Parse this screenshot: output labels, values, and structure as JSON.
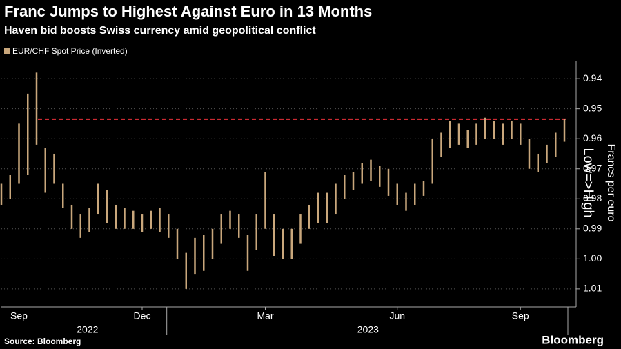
{
  "chart_data": {
    "type": "range-bar",
    "title": "Franc Jumps to Highest Against Euro in 13 Months",
    "subtitle": "Haven bid boosts Swiss currency amid geopolitical conflict",
    "y_axis_label": "Francs per euro",
    "annotation": "Low=>High",
    "source": "Source: Bloomberg",
    "brand": "Bloomberg",
    "x_year_labels": [
      "2022",
      "2023"
    ],
    "categories": [
      null,
      null,
      "Sep",
      null,
      null,
      null,
      null,
      null,
      null,
      null,
      null,
      null,
      null,
      null,
      null,
      null,
      "Dec",
      null,
      null,
      null,
      null,
      null,
      null,
      null,
      null,
      null,
      null,
      null,
      null,
      null,
      "Mar",
      null,
      null,
      null,
      null,
      null,
      null,
      null,
      null,
      null,
      null,
      null,
      null,
      null,
      null,
      "Jun",
      null,
      null,
      null,
      null,
      null,
      null,
      null,
      null,
      null,
      null,
      null,
      null,
      null,
      "Sep",
      null,
      null,
      null,
      null,
      null
    ],
    "series": [
      {
        "name": "EUR/CHF Spot Price (Inverted)",
        "color": "#c9a77c",
        "low": [
          0.975,
          0.972,
          0.955,
          0.945,
          0.938,
          0.963,
          0.965,
          0.975,
          0.982,
          0.985,
          0.983,
          0.975,
          0.977,
          0.982,
          0.983,
          0.984,
          0.985,
          0.984,
          0.983,
          0.985,
          0.99,
          0.998,
          0.993,
          0.992,
          0.99,
          0.985,
          0.984,
          0.985,
          0.992,
          0.985,
          0.971,
          0.985,
          0.99,
          0.99,
          0.985,
          0.982,
          0.978,
          0.978,
          0.975,
          0.972,
          0.971,
          0.968,
          0.967,
          0.969,
          0.97,
          0.975,
          0.978,
          0.975,
          0.974,
          0.96,
          0.958,
          0.954,
          0.955,
          0.957,
          0.955,
          0.953,
          0.954,
          0.955,
          0.954,
          0.955,
          0.96,
          0.965,
          0.962,
          0.958,
          0.9535
        ],
        "high": [
          0.982,
          0.98,
          0.975,
          0.972,
          0.962,
          0.978,
          0.975,
          0.983,
          0.99,
          0.993,
          0.991,
          0.985,
          0.988,
          0.99,
          0.99,
          0.99,
          0.991,
          0.99,
          0.991,
          0.993,
          1.0,
          1.01,
          1.005,
          1.004,
          1.0,
          0.995,
          0.99,
          0.993,
          1.004,
          0.997,
          0.99,
          0.999,
          1.0,
          1.0,
          0.995,
          0.99,
          0.988,
          0.988,
          0.985,
          0.98,
          0.977,
          0.975,
          0.974,
          0.976,
          0.979,
          0.982,
          0.984,
          0.982,
          0.979,
          0.975,
          0.966,
          0.963,
          0.962,
          0.963,
          0.962,
          0.96,
          0.96,
          0.962,
          0.96,
          0.962,
          0.97,
          0.971,
          0.968,
          0.966,
          0.961
        ]
      }
    ],
    "reference_line": {
      "value": 0.9535,
      "color": "#e8313a"
    },
    "ylim": [
      0.934,
      1.016
    ],
    "inverted": true,
    "yticks": [
      0.94,
      0.95,
      0.96,
      0.97,
      0.98,
      0.99,
      {
        "value": 1,
        "label": "1.00"
      },
      1.01
    ],
    "grid": true
  }
}
